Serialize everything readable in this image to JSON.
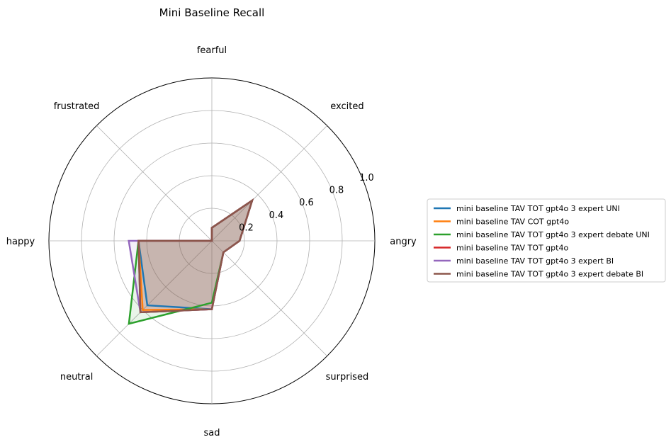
{
  "chart_data": {
    "type": "radar",
    "title": "Mini Baseline Recall",
    "categories": [
      "angry",
      "excited",
      "fearful",
      "frustrated",
      "happy",
      "neutral",
      "sad",
      "surprised"
    ],
    "rlim": [
      0,
      1.0
    ],
    "rticks": [
      0.2,
      0.4,
      0.6,
      0.8,
      1.0
    ],
    "rtick_labels": [
      "0.2",
      "0.4",
      "0.6",
      "0.8",
      "1.0"
    ],
    "grid": true,
    "legend_position": "right",
    "series": [
      {
        "name": "mini baseline TAV TOT gpt4o 3 expert UNI",
        "color": "#1f77b4",
        "values": [
          0.17,
          0.35,
          0.08,
          0.0,
          0.45,
          0.56,
          0.42,
          0.1
        ]
      },
      {
        "name": "mini baseline TAV COT gpt4o",
        "color": "#ff7f0e",
        "values": [
          0.17,
          0.35,
          0.08,
          0.0,
          0.45,
          0.6,
          0.42,
          0.1
        ]
      },
      {
        "name": "mini baseline TAV TOT gpt4o 3 expert debate UNI",
        "color": "#2ca02c",
        "values": [
          0.17,
          0.35,
          0.08,
          0.0,
          0.45,
          0.72,
          0.38,
          0.1
        ]
      },
      {
        "name": "mini baseline TAV TOT gpt4o",
        "color": "#d62728",
        "values": [
          0.17,
          0.35,
          0.08,
          0.0,
          0.45,
          0.62,
          0.42,
          0.1
        ]
      },
      {
        "name": "mini baseline TAV TOT gpt4o 3 expert BI",
        "color": "#9467bd",
        "values": [
          0.17,
          0.35,
          0.08,
          0.0,
          0.51,
          0.62,
          0.42,
          0.1
        ]
      },
      {
        "name": "mini baseline TAV TOT gpt4o 3 expert debate BI",
        "color": "#8c564b",
        "values": [
          0.17,
          0.35,
          0.08,
          0.0,
          0.45,
          0.62,
          0.42,
          0.1
        ]
      }
    ]
  }
}
